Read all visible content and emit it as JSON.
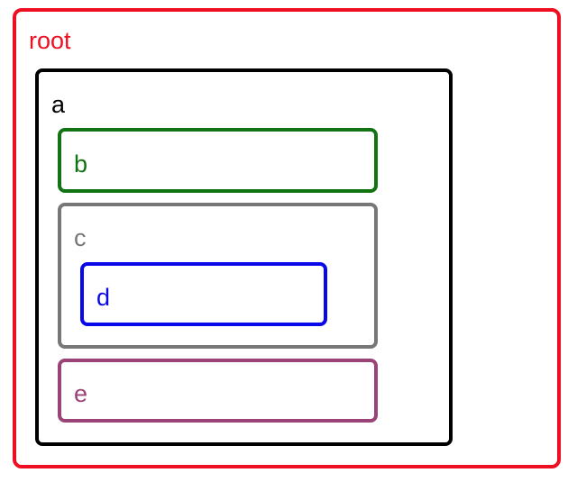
{
  "nodes": {
    "root": {
      "label": "root",
      "color": "#ee0f22"
    },
    "a": {
      "label": "a",
      "color": "#000000"
    },
    "b": {
      "label": "b",
      "color": "#117312"
    },
    "c": {
      "label": "c",
      "color": "#777777"
    },
    "d": {
      "label": "d",
      "color": "#0808e8"
    },
    "e": {
      "label": "e",
      "color": "#9a4377"
    }
  },
  "tree": {
    "id": "root",
    "children": [
      {
        "id": "a",
        "children": [
          {
            "id": "b",
            "children": []
          },
          {
            "id": "c",
            "children": [
              {
                "id": "d",
                "children": []
              }
            ]
          },
          {
            "id": "e",
            "children": []
          }
        ]
      }
    ]
  }
}
